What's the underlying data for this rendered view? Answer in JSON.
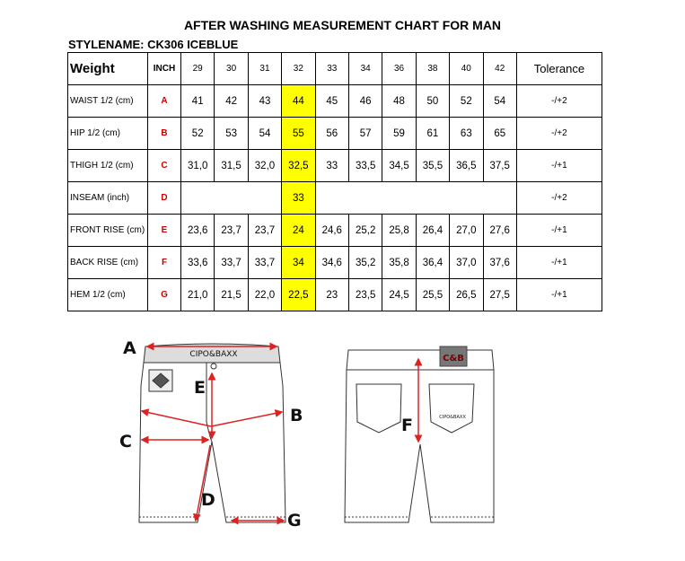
{
  "title": "AFTER WASHING MEASUREMENT CHART FOR MAN",
  "stylename": "STYLENAME: CK306 ICEBLUE",
  "header": {
    "label": "Weight",
    "inch": "INCH",
    "sizes": [
      "29",
      "30",
      "31",
      "32",
      "33",
      "34",
      "36",
      "38",
      "40",
      "42"
    ],
    "tolerance": "Tolerance"
  },
  "highlight_size": "32",
  "highlight_color": "#ffff00",
  "code_color": "#cc0000",
  "rows": [
    {
      "label": "WAIST 1/2 (cm)",
      "code": "A",
      "values": [
        "41",
        "42",
        "43",
        "44",
        "45",
        "46",
        "48",
        "50",
        "52",
        "54"
      ],
      "tolerance": "-/+2"
    },
    {
      "label": "HIP 1/2 (cm)",
      "code": "B",
      "values": [
        "52",
        "53",
        "54",
        "55",
        "56",
        "57",
        "59",
        "61",
        "63",
        "65"
      ],
      "tolerance": "-/+2"
    },
    {
      "label": "THIGH 1/2 (cm)",
      "code": "C",
      "values": [
        "31,0",
        "31,5",
        "32,0",
        "32,5",
        "33",
        "33,5",
        "34,5",
        "35,5",
        "36,5",
        "37,5"
      ],
      "tolerance": "-/+1"
    },
    {
      "label": "INSEAM (inch)",
      "code": "D",
      "merged_value": "33",
      "tolerance": "-/+2"
    },
    {
      "label": "FRONT RISE (cm)",
      "code": "E",
      "values": [
        "23,6",
        "23,7",
        "23,7",
        "24",
        "24,6",
        "25,2",
        "25,8",
        "26,4",
        "27,0",
        "27,6"
      ],
      "tolerance": "-/+1"
    },
    {
      "label": "BACK RISE (cm)",
      "code": "F",
      "values": [
        "33,6",
        "33,7",
        "33,7",
        "34",
        "34,6",
        "35,2",
        "35,8",
        "36,4",
        "37,0",
        "37,6"
      ],
      "tolerance": "-/+1"
    },
    {
      "label": "HEM 1/2  (cm)",
      "code": "G",
      "values": [
        "21,0",
        "21,5",
        "22,0",
        "22,5",
        "23",
        "23,5",
        "24,5",
        "25,5",
        "26,5",
        "27,5"
      ],
      "tolerance": "-/+1"
    }
  ],
  "diagram": {
    "brand": "CIPO&BAXX",
    "badge": "C&B",
    "labels": [
      "A",
      "B",
      "C",
      "D",
      "E",
      "F",
      "G"
    ]
  }
}
